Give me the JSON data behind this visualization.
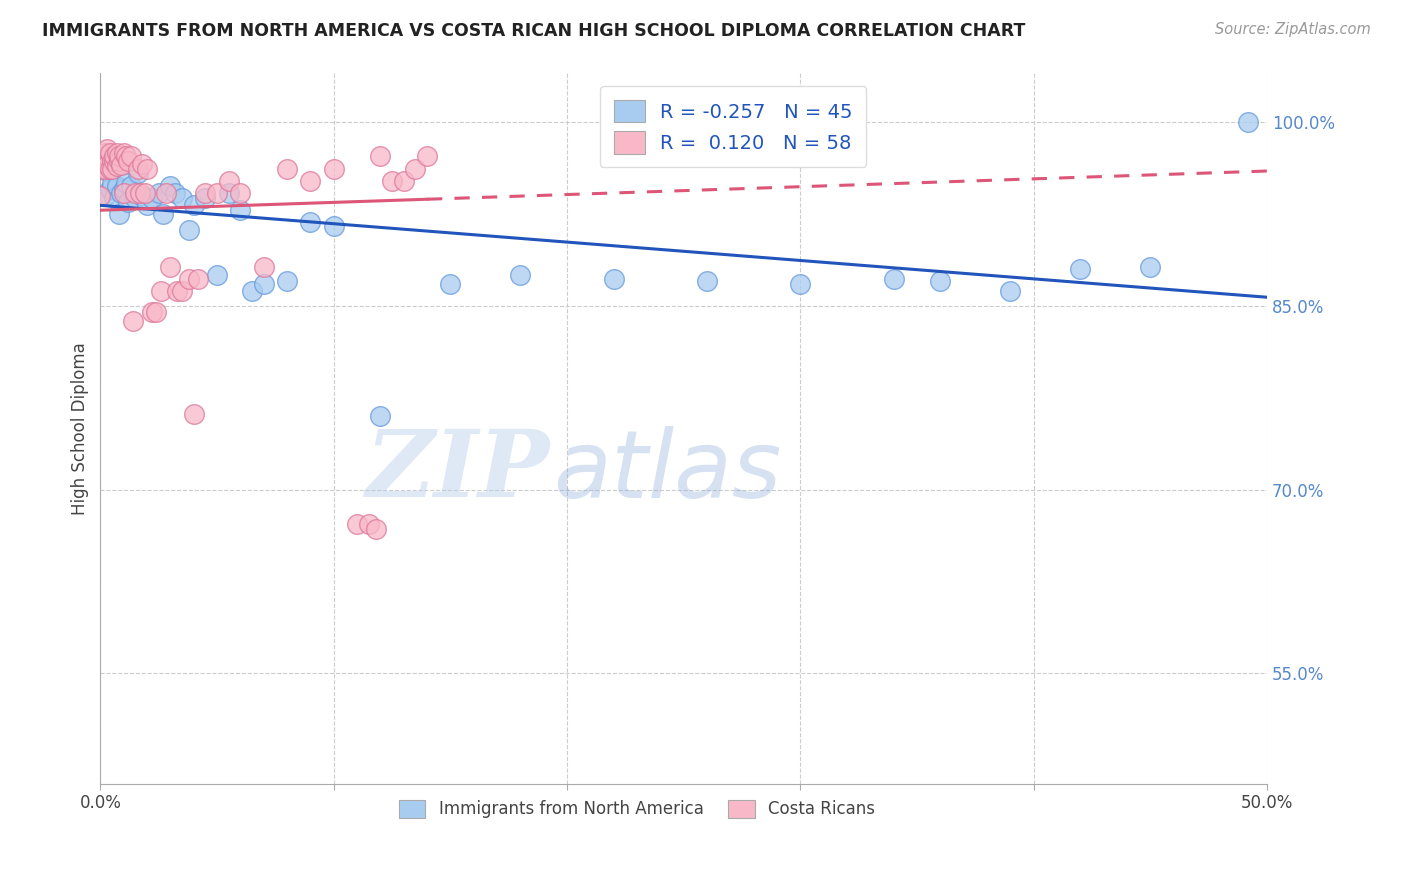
{
  "title": "IMMIGRANTS FROM NORTH AMERICA VS COSTA RICAN HIGH SCHOOL DIPLOMA CORRELATION CHART",
  "source": "Source: ZipAtlas.com",
  "ylabel": "High School Diploma",
  "xlim": [
    0.0,
    0.5
  ],
  "ylim": [
    0.46,
    1.04
  ],
  "xtick_positions": [
    0.0,
    0.1,
    0.2,
    0.3,
    0.4,
    0.5
  ],
  "xtick_labels": [
    "0.0%",
    "",
    "",
    "",
    "",
    "50.0%"
  ],
  "ytick_labels_right": [
    "100.0%",
    "85.0%",
    "70.0%",
    "55.0%"
  ],
  "ytick_values_right": [
    1.0,
    0.85,
    0.7,
    0.55
  ],
  "legend_label1": "Immigrants from North America",
  "legend_label2": "Costa Ricans",
  "R1": "-0.257",
  "N1": "45",
  "R2": "0.120",
  "N2": "58",
  "color_blue_fill": "#A8CCF0",
  "color_blue_edge": "#6699DD",
  "color_pink_fill": "#F8B8C8",
  "color_pink_edge": "#DD7799",
  "color_blue_line": "#2255BB",
  "color_pink_line": "#DD5577",
  "blue_x": [
    0.002,
    0.003,
    0.004,
    0.005,
    0.006,
    0.007,
    0.008,
    0.009,
    0.01,
    0.011,
    0.012,
    0.013,
    0.015,
    0.016,
    0.018,
    0.02,
    0.022,
    0.025,
    0.027,
    0.03,
    0.032,
    0.035,
    0.038,
    0.04,
    0.045,
    0.05,
    0.055,
    0.06,
    0.065,
    0.07,
    0.08,
    0.09,
    0.1,
    0.12,
    0.15,
    0.18,
    0.22,
    0.26,
    0.3,
    0.34,
    0.36,
    0.39,
    0.42,
    0.45,
    0.492
  ],
  "blue_y": [
    0.94,
    0.96,
    0.945,
    0.95,
    0.938,
    0.948,
    0.925,
    0.942,
    0.945,
    0.95,
    0.935,
    0.948,
    0.938,
    0.958,
    0.94,
    0.932,
    0.938,
    0.942,
    0.925,
    0.948,
    0.942,
    0.938,
    0.912,
    0.932,
    0.938,
    0.875,
    0.942,
    0.928,
    0.862,
    0.868,
    0.87,
    0.918,
    0.915,
    0.76,
    0.868,
    0.875,
    0.872,
    0.87,
    0.868,
    0.872,
    0.87,
    0.862,
    0.88,
    0.882,
    1.0
  ],
  "pink_x": [
    0.0,
    0.001,
    0.001,
    0.002,
    0.002,
    0.002,
    0.003,
    0.003,
    0.003,
    0.004,
    0.004,
    0.005,
    0.005,
    0.006,
    0.006,
    0.007,
    0.007,
    0.008,
    0.008,
    0.009,
    0.01,
    0.01,
    0.011,
    0.012,
    0.013,
    0.014,
    0.015,
    0.016,
    0.017,
    0.018,
    0.019,
    0.02,
    0.022,
    0.024,
    0.026,
    0.028,
    0.03,
    0.033,
    0.035,
    0.038,
    0.04,
    0.042,
    0.045,
    0.05,
    0.055,
    0.06,
    0.07,
    0.08,
    0.09,
    0.1,
    0.11,
    0.115,
    0.118,
    0.12,
    0.125,
    0.13,
    0.135,
    0.14
  ],
  "pink_y": [
    0.94,
    0.97,
    0.962,
    0.968,
    0.975,
    0.962,
    0.972,
    0.965,
    0.978,
    0.962,
    0.975,
    0.968,
    0.962,
    0.968,
    0.972,
    0.964,
    0.975,
    0.968,
    0.972,
    0.965,
    0.942,
    0.975,
    0.972,
    0.968,
    0.972,
    0.838,
    0.942,
    0.962,
    0.942,
    0.966,
    0.942,
    0.962,
    0.845,
    0.845,
    0.862,
    0.942,
    0.882,
    0.862,
    0.862,
    0.872,
    0.762,
    0.872,
    0.942,
    0.942,
    0.952,
    0.942,
    0.882,
    0.962,
    0.952,
    0.962,
    0.672,
    0.672,
    0.668,
    0.972,
    0.952,
    0.952,
    0.962,
    0.972
  ],
  "watermark_zip": "ZIP",
  "watermark_atlas": "atlas",
  "background_color": "#FFFFFF",
  "grid_color": "#CCCCCC",
  "grid_style": "--"
}
